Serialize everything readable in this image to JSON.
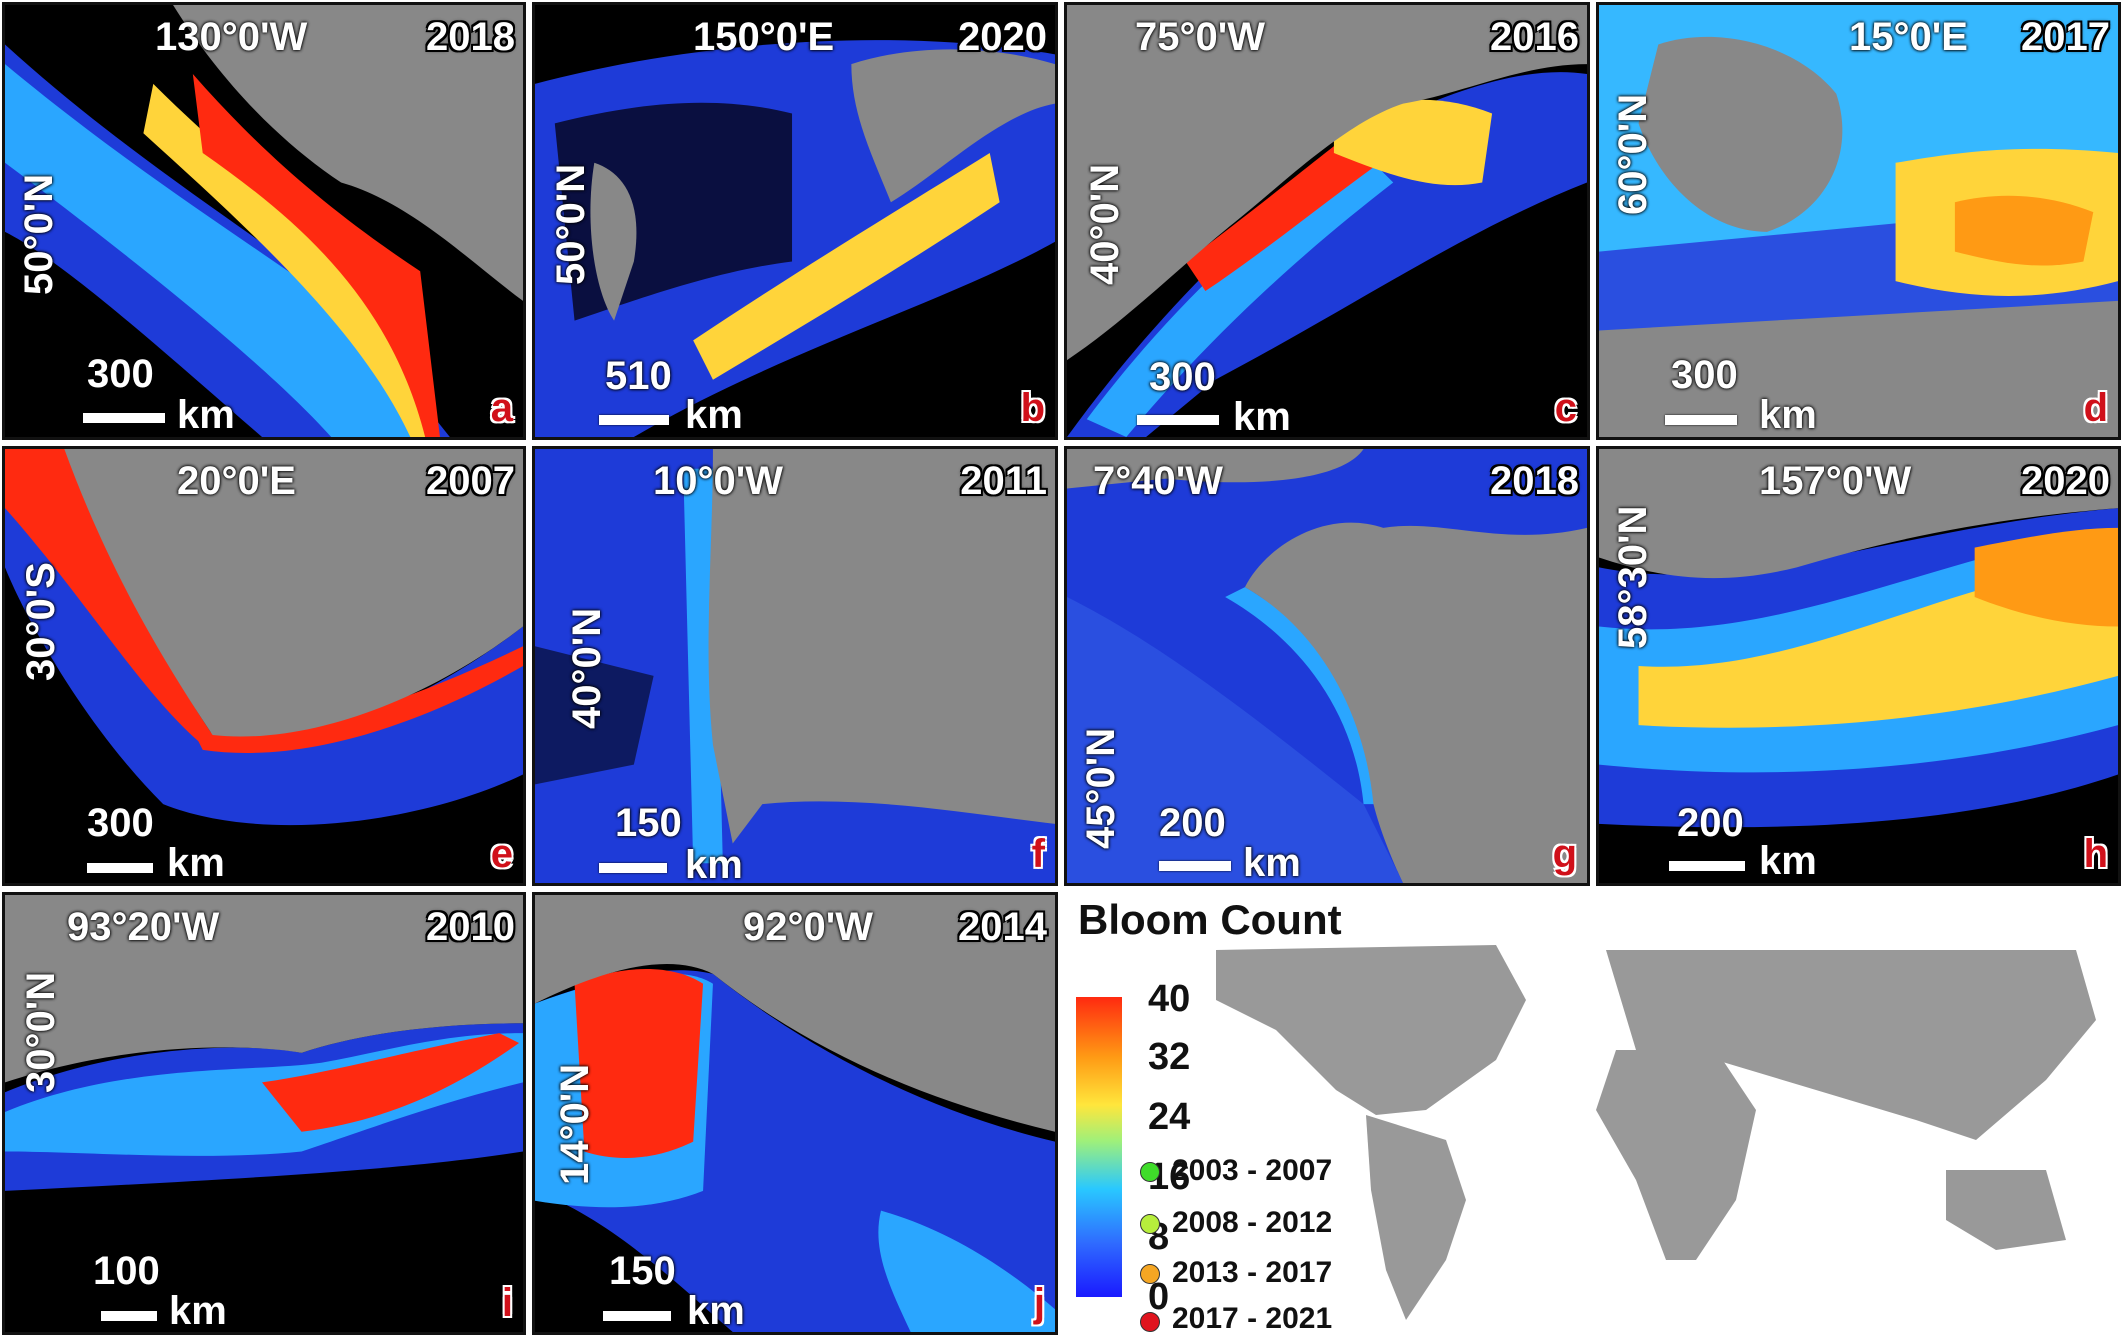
{
  "panels": [
    {
      "id": "a",
      "lon": "130°0'W",
      "year": "2018",
      "lat": "50°0'N",
      "scale": "300",
      "unit": "km",
      "letter": "a"
    },
    {
      "id": "b",
      "lon": "150°0'E",
      "year": "2020",
      "lat": "50°0'N",
      "scale": "510",
      "unit": "km",
      "letter": "b"
    },
    {
      "id": "c",
      "lon": "75°0'W",
      "year": "2016",
      "lat": "40°0'N",
      "scale": "300",
      "unit": "km",
      "letter": "c"
    },
    {
      "id": "d",
      "lon": "15°0'E",
      "year": "2017",
      "lat": "60°0'N",
      "scale": "300",
      "unit": "km",
      "letter": "d"
    },
    {
      "id": "e",
      "lon": "20°0'E",
      "year": "2007",
      "lat": "30°0'S",
      "scale": "300",
      "unit": "km",
      "letter": "e"
    },
    {
      "id": "f",
      "lon": "10°0'W",
      "year": "2011",
      "lat": "40°0'N",
      "scale": "150",
      "unit": "km",
      "letter": "f"
    },
    {
      "id": "g",
      "lon": "7°40'W",
      "year": "2018",
      "lat": "45°0'N",
      "scale": "200",
      "unit": "km",
      "letter": "g"
    },
    {
      "id": "h",
      "lon": "157°0'W",
      "year": "2020",
      "lat": "58°30'N",
      "scale": "200",
      "unit": "km",
      "letter": "h"
    },
    {
      "id": "i",
      "lon": "93°20'W",
      "year": "2010",
      "lat": "30°0'N",
      "scale": "100",
      "unit": "km",
      "letter": "i"
    },
    {
      "id": "j",
      "lon": "92°0'W",
      "year": "2014",
      "lat": "14°0'N",
      "scale": "150",
      "unit": "km",
      "letter": "j"
    }
  ],
  "legend": {
    "title": "Bloom Count",
    "ticks": [
      "40",
      "32",
      "24",
      "16",
      "8",
      "0"
    ],
    "periods": [
      {
        "label": "2003 - 2007",
        "color": "#3fdc2a"
      },
      {
        "label": "2008 - 2012",
        "color": "#b7ee3c"
      },
      {
        "label": "2013 - 2017",
        "color": "#f5a623"
      },
      {
        "label": "2017 - 2021",
        "color": "#e0141e"
      }
    ]
  }
}
